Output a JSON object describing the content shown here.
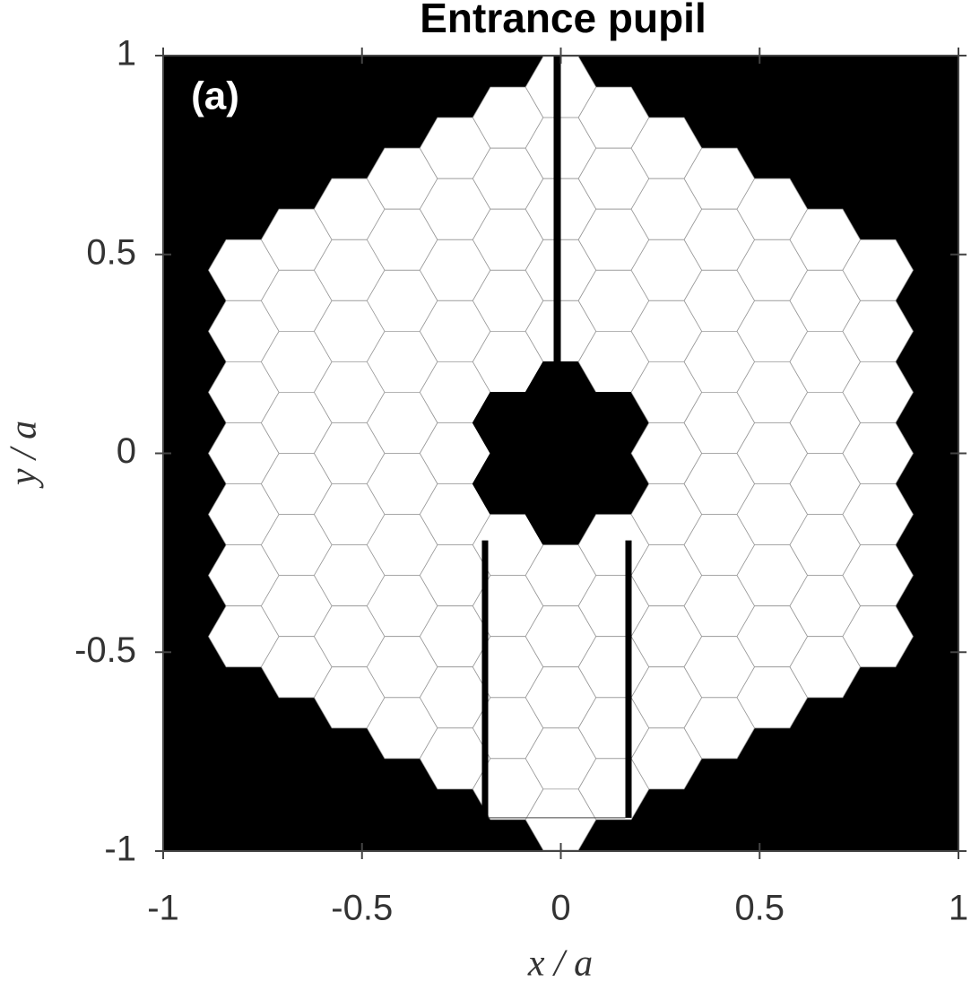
{
  "chart_data": {
    "type": "pupil-map",
    "title": "Entrance pupil",
    "annotation": "(a)",
    "xlabel": "x / a",
    "ylabel": "y / a",
    "xlim": [
      -1,
      1
    ],
    "ylim": [
      -1,
      1
    ],
    "xticks": [
      -1,
      -0.5,
      0,
      0.5,
      1
    ],
    "yticks": [
      -1,
      -0.5,
      0,
      0.5,
      1
    ]
  }
}
